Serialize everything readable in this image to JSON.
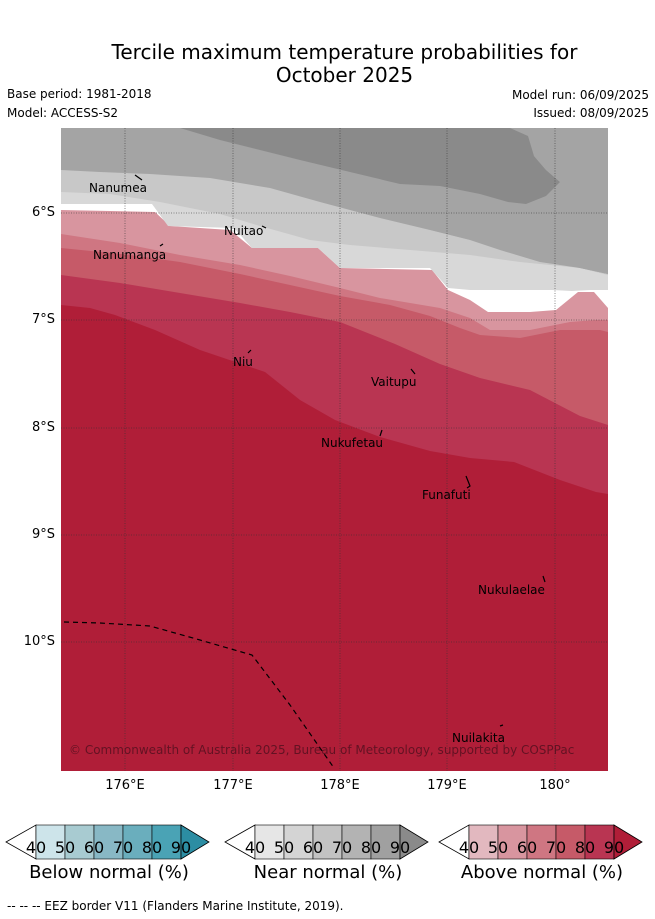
{
  "title_line1": "Tercile maximum temperature probabilities for",
  "title_line2": "October 2025",
  "base_period": "Base period: 1981-2018",
  "model": "Model: ACCESS-S2",
  "model_run": "Model run: 06/09/2025",
  "issued": "Issued: 08/09/2025",
  "lat_labels": [
    "6°S",
    "7°S",
    "8°S",
    "9°S",
    "10°S"
  ],
  "lon_labels": [
    "176°E",
    "177°E",
    "178°E",
    "179°E",
    "180°"
  ],
  "places": {
    "nanumea": "Nanumea",
    "nuitao": "Nuitao",
    "nanumanga": "Nanumanga",
    "niu": "Niu",
    "vaitupu": "Vaitupu",
    "nukufetau": "Nukufetau",
    "funafuti": "Funafuti",
    "nukulaelae": "Nukulaelae",
    "nuilakita": "Nuilakita"
  },
  "copyright": "© Commonwealth of Australia 2025, Bureau of Meteorology, supported by COSPPac",
  "colorbars": [
    {
      "title": "Below normal (%)",
      "ticks": [
        "40",
        "50",
        "60",
        "70",
        "80",
        "90"
      ],
      "colors": [
        "#cde4ea",
        "#a8cbd1",
        "#88b8c5",
        "#6aaebd",
        "#4aa3b5",
        "#2c8da3"
      ]
    },
    {
      "title": "Near normal (%)",
      "ticks": [
        "40",
        "50",
        "60",
        "70",
        "80",
        "90"
      ],
      "colors": [
        "#e6e6e6",
        "#d4d4d4",
        "#c3c3c3",
        "#b3b3b3",
        "#a0a0a0",
        "#8a8a8a"
      ]
    },
    {
      "title": "Above normal (%)",
      "ticks": [
        "40",
        "50",
        "60",
        "70",
        "80",
        "90"
      ],
      "colors": [
        "#e2b8bf",
        "#d8959f",
        "#cf7682",
        "#c65a68",
        "#b93552",
        "#b01e38"
      ]
    }
  ],
  "footnote": "--  --  -- EEZ border V11 (Flanders Marine Institute, 2019)."
}
